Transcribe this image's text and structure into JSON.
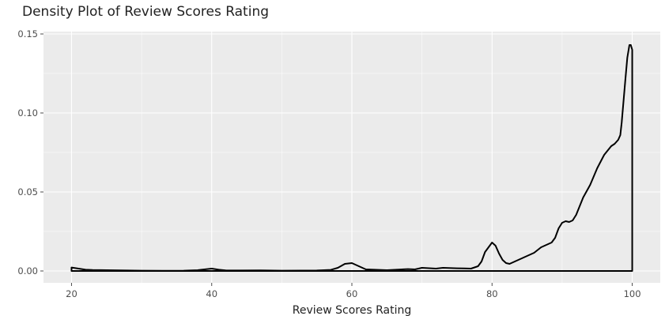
{
  "chart_data": {
    "type": "area",
    "title": "Density Plot of Review Scores Rating",
    "xlabel": "Review Scores Rating",
    "ylabel": "",
    "xlim": [
      16,
      104
    ],
    "ylim": [
      -0.0075,
      0.1515
    ],
    "x_ticks": [
      20,
      40,
      60,
      80,
      100
    ],
    "y_ticks": [
      0.0,
      0.05,
      0.1,
      0.15
    ],
    "x_tick_labels": [
      "20",
      "40",
      "60",
      "80",
      "100"
    ],
    "y_tick_labels": [
      "0.00",
      "0.05",
      "0.10",
      "0.15"
    ],
    "grid": true,
    "legend": "none",
    "colors": {
      "panel": "#ebebeb",
      "grid": "#ffffff",
      "line": "#000000"
    },
    "series": [
      {
        "x": [
          20,
          21,
          22,
          23,
          25,
          27,
          30,
          33,
          36,
          38,
          40,
          41,
          42,
          44,
          47,
          50,
          55,
          57,
          58,
          59,
          60,
          61,
          62,
          65,
          68,
          69,
          70,
          72,
          73,
          75,
          76,
          77,
          78,
          78.5,
          79,
          80,
          80.5,
          81,
          81.5,
          82,
          82.5,
          83,
          84,
          85,
          86,
          87,
          88,
          88.5,
          89,
          89.5,
          90,
          90.5,
          91,
          91.5,
          92,
          93,
          94,
          95,
          96,
          97,
          97.5,
          98,
          98.3,
          98.5,
          99,
          99.3,
          99.6,
          99.8,
          100,
          100
        ],
        "y": [
          0.0022,
          0.0015,
          0.0008,
          0.0006,
          0.0005,
          0.0004,
          0.0002,
          0.0001,
          0.0002,
          0.0005,
          0.0015,
          0.0008,
          0.0004,
          0.0003,
          0.0004,
          0.0002,
          0.0003,
          0.0007,
          0.002,
          0.0045,
          0.005,
          0.003,
          0.001,
          0.0005,
          0.0012,
          0.001,
          0.002,
          0.0015,
          0.002,
          0.0017,
          0.0016,
          0.0015,
          0.003,
          0.006,
          0.012,
          0.018,
          0.016,
          0.011,
          0.007,
          0.005,
          0.0045,
          0.0055,
          0.0075,
          0.0095,
          0.0115,
          0.015,
          0.017,
          0.018,
          0.021,
          0.027,
          0.0305,
          0.0315,
          0.031,
          0.032,
          0.0355,
          0.0465,
          0.0545,
          0.065,
          0.0735,
          0.079,
          0.0805,
          0.083,
          0.086,
          0.094,
          0.12,
          0.135,
          0.143,
          0.143,
          0.14,
          0.0
        ]
      }
    ]
  }
}
